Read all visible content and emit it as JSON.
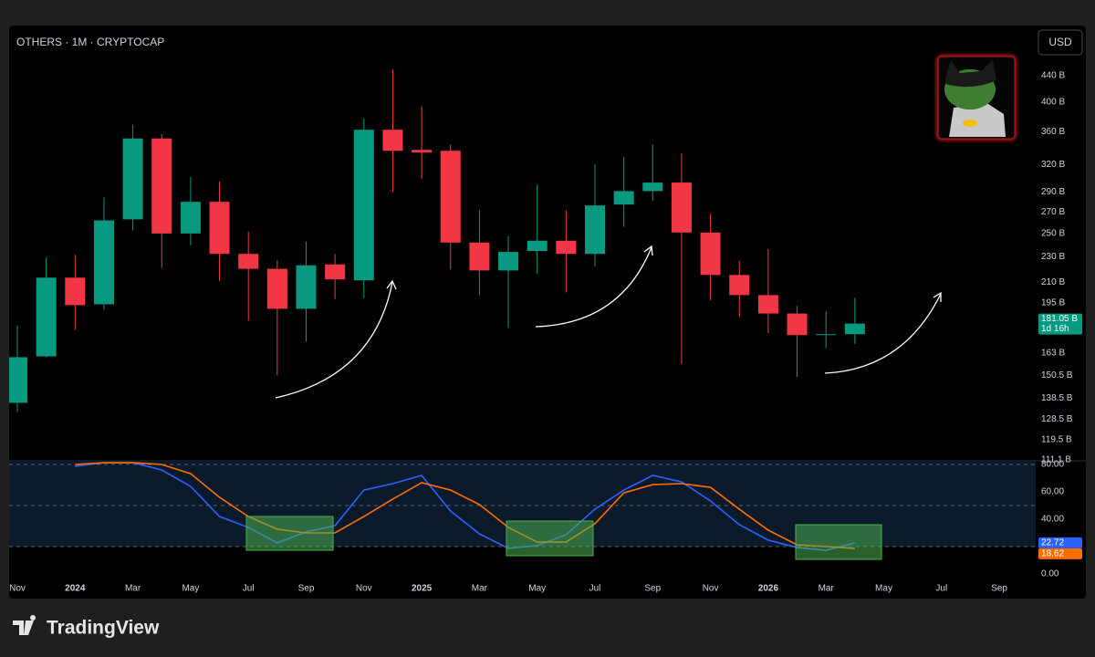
{
  "chart_data": [
    {
      "type": "candlestick",
      "title": "OTHERS · 1M · CRYPTOCAP",
      "currency": "USD",
      "log_scale": true,
      "grid": false,
      "up_color": "#089981",
      "down_color": "#f23645",
      "categories": [
        "Nov",
        null,
        "2024",
        null,
        "Mar",
        null,
        "May",
        null,
        "Jul",
        null,
        "Sep",
        null,
        "Nov",
        null,
        "2025",
        null,
        "Mar",
        null,
        "May",
        null,
        "Jul",
        null,
        "Sep",
        null,
        "Nov",
        null,
        "2026",
        null,
        "Mar",
        null,
        "May",
        null,
        "Jul",
        null,
        "Sep"
      ],
      "open": [
        136.3,
        161,
        213.4,
        194,
        263,
        351.4,
        250,
        280,
        232.4,
        220.3,
        190.9,
        223.8,
        211.4,
        362.5,
        337.3,
        336.2,
        242,
        219,
        234.8,
        243.6,
        232.4,
        277.3,
        291,
        300,
        250.9,
        215.5,
        200.5,
        187.7,
        173.7,
        174.3,
        null,
        null,
        null,
        null,
        null
      ],
      "high": [
        179.7,
        229.3,
        231.6,
        284.5,
        368.8,
        356.8,
        306,
        301,
        251.7,
        227.2,
        242.8,
        232.4,
        377.5,
        450,
        393.8,
        343.8,
        271.8,
        247.6,
        298,
        271.8,
        320,
        328.6,
        343.8,
        332.9,
        268.3,
        226.6,
        236.4,
        192.9,
        189.3,
        198.4,
        null,
        null,
        null,
        null,
        null
      ],
      "low": [
        132,
        160.5,
        177,
        190.3,
        252.6,
        221,
        239.6,
        210.7,
        183,
        150.5,
        169.7,
        197.7,
        198.4,
        290,
        304,
        219.7,
        200.5,
        178.3,
        216.2,
        202.5,
        222.4,
        256,
        280.9,
        156.5,
        197,
        185.6,
        175,
        149.5,
        165.7,
        168.3,
        null,
        null,
        null,
        null,
        null
      ],
      "close": [
        160.5,
        213.4,
        193.4,
        262,
        351.4,
        250,
        280,
        232.4,
        220.3,
        190.9,
        223.1,
        212.1,
        362.5,
        336.2,
        334.1,
        242,
        219,
        234,
        243.6,
        232.4,
        276.4,
        291,
        300,
        250.9,
        215.5,
        200.5,
        187.7,
        173.7,
        174.3,
        181.05,
        null,
        null,
        null,
        null,
        null
      ],
      "ylim": [
        111.1,
        530
      ],
      "yticks": [
        {
          "value": 440,
          "label": "440 B"
        },
        {
          "value": 400,
          "label": "400 B"
        },
        {
          "value": 360,
          "label": "360 B"
        },
        {
          "value": 320,
          "label": "320 B"
        },
        {
          "value": 290,
          "label": "290 B"
        },
        {
          "value": 270,
          "label": "270 B"
        },
        {
          "value": 250,
          "label": "250 B"
        },
        {
          "value": 230,
          "label": "230 B"
        },
        {
          "value": 210,
          "label": "210 B"
        },
        {
          "value": 195,
          "label": "195 B"
        },
        {
          "value": 163,
          "label": "163 B"
        },
        {
          "value": 150.5,
          "label": "150.5 B"
        },
        {
          "value": 138.5,
          "label": "138.5 B"
        },
        {
          "value": 128.5,
          "label": "128.5 B"
        },
        {
          "value": 119.5,
          "label": "119.5 B"
        },
        {
          "value": 111.1,
          "label": "111.1 B"
        }
      ],
      "last_price": {
        "value": 181.05,
        "label": "181.05 B"
      },
      "countdown": "1d 16h"
    },
    {
      "type": "line",
      "ylim": [
        -17.33,
        82.67
      ],
      "levels": [
        80,
        50,
        20
      ],
      "yticks": [
        {
          "value": 80,
          "label": "80.00"
        },
        {
          "value": 60,
          "label": "60.00"
        },
        {
          "value": 40,
          "label": "40.00"
        },
        {
          "value": 0,
          "label": "0.00"
        }
      ],
      "series": [
        {
          "color": "#2962ff",
          "values": [
            null,
            null,
            78.7,
            81.3,
            81.3,
            76,
            64,
            42,
            34,
            22.7,
            30.7,
            35.3,
            61.3,
            66,
            72,
            46,
            29.3,
            18.7,
            20.7,
            28.7,
            47.3,
            61.3,
            72,
            67.3,
            53.3,
            36,
            24.7,
            19.3,
            17.3,
            22.72,
            null,
            null,
            null,
            null,
            null
          ]
        },
        {
          "color": "#ff6d00",
          "values": [
            null,
            null,
            80,
            81.3,
            81.3,
            80,
            73.3,
            56,
            42,
            32.7,
            30,
            30,
            42,
            54.7,
            66.7,
            61.3,
            50.7,
            34,
            23.3,
            23.3,
            36.7,
            59.3,
            65.3,
            66,
            63.3,
            47.3,
            32,
            21.3,
            20,
            18.62,
            null,
            null,
            null,
            null,
            null
          ]
        }
      ]
    }
  ],
  "footer": {
    "brand": "TradingView"
  }
}
